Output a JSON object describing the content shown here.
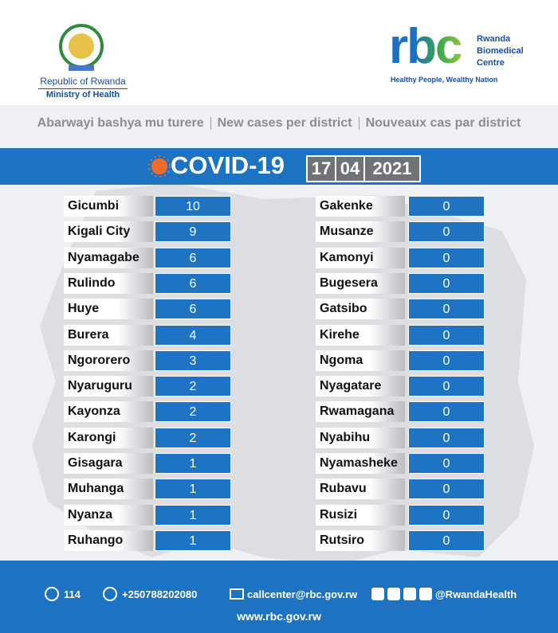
{
  "header": {
    "ministry": {
      "lines": [
        "Republic of Rwanda",
        "Ministry of Health"
      ]
    },
    "rbc": {
      "logo": "rbc",
      "name_lines": [
        "Rwanda",
        "Biomedical",
        "Centre"
      ],
      "tagline": "Healthy People, Wealthy Nation"
    }
  },
  "subtitle": [
    "Abarwayi bashya mu turere",
    "New cases per district",
    "Nouveaux cas par district"
  ],
  "banner": {
    "title": "COVID-19",
    "date": [
      "17",
      "04",
      "2021"
    ]
  },
  "table": {
    "left": [
      [
        "Gicumbi",
        10
      ],
      [
        "Kigali City",
        9
      ],
      [
        "Nyamagabe",
        6
      ],
      [
        "Rulindo",
        6
      ],
      [
        "Huye",
        6
      ],
      [
        "Burera",
        4
      ],
      [
        "Ngororero",
        3
      ],
      [
        "Nyaruguru",
        2
      ],
      [
        "Kayonza",
        2
      ],
      [
        "Karongi",
        2
      ],
      [
        "Gisagara",
        1
      ],
      [
        "Muhanga",
        1
      ],
      [
        "Nyanza",
        1
      ],
      [
        "Ruhango",
        1
      ]
    ],
    "right": [
      [
        "Gakenke",
        0
      ],
      [
        "Musanze",
        0
      ],
      [
        "Kamonyi",
        0
      ],
      [
        "Bugesera",
        0
      ],
      [
        "Gatsibo",
        0
      ],
      [
        "Kirehe",
        0
      ],
      [
        "Ngoma",
        0
      ],
      [
        "Nyagatare",
        0
      ],
      [
        "Rwamagana",
        0
      ],
      [
        "Nyabihu",
        0
      ],
      [
        "Nyamasheke",
        0
      ],
      [
        "Rubavu",
        0
      ],
      [
        "Rusizi",
        0
      ],
      [
        "Rutsiro",
        0
      ]
    ]
  },
  "footer": {
    "phone": "114",
    "mobile": "+250788202080",
    "email": "callcenter@rbc.gov.rw",
    "social": "@RwandaHealth",
    "website": "www.rbc.gov.rw"
  }
}
